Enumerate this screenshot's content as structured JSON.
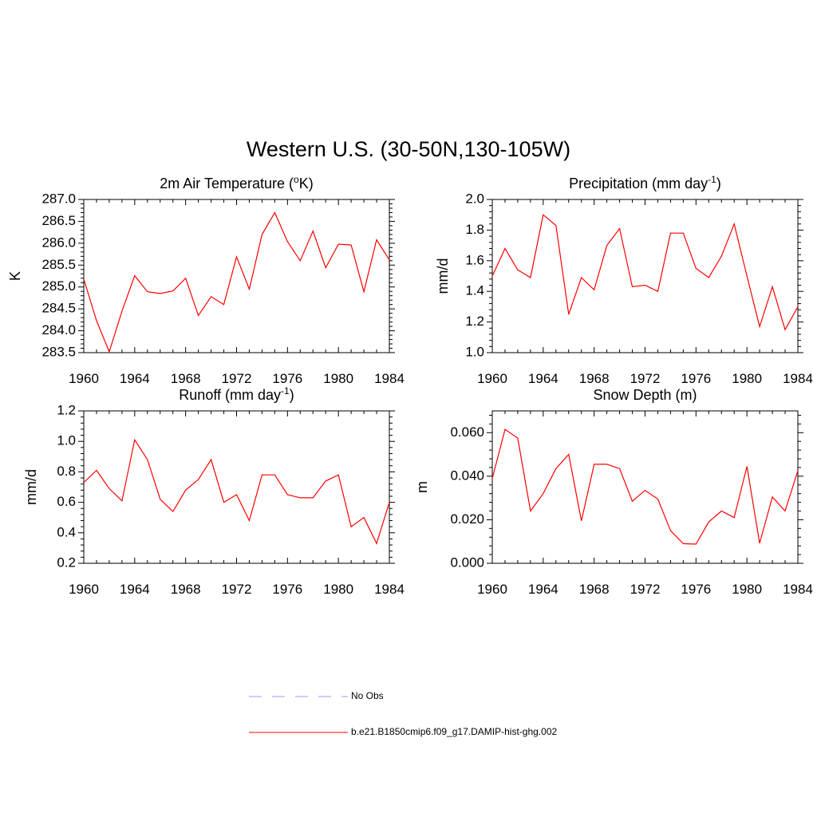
{
  "figure": {
    "title": "Western U.S. (30-50N,130-105W)"
  },
  "legend": [
    {
      "label": "No Obs",
      "color": "#9999ff",
      "style": "dashed"
    },
    {
      "label": "b.e21.B1850cmip6.f09_g17.DAMIP-hist-ghg.002",
      "color": "#ff0000",
      "style": "solid"
    }
  ],
  "chart_data": [
    {
      "type": "line",
      "title": "2m Air Temperature (oK)",
      "title_parts": [
        "2m Air Temperature (",
        "o",
        "K)"
      ],
      "title_superscript": "o",
      "ylabel": "K",
      "xlim": [
        1960,
        1984
      ],
      "ylim": [
        283.5,
        287.0
      ],
      "xticks": [
        1960,
        1964,
        1968,
        1972,
        1976,
        1980,
        1984
      ],
      "yticks": [
        "283.5",
        "284.0",
        "284.5",
        "285.0",
        "285.5",
        "286.0",
        "286.5",
        "287.0"
      ],
      "x": [
        1960,
        1961,
        1962,
        1963,
        1964,
        1965,
        1966,
        1967,
        1968,
        1969,
        1970,
        1971,
        1972,
        1973,
        1974,
        1975,
        1976,
        1977,
        1978,
        1979,
        1980,
        1981,
        1982,
        1983,
        1984
      ],
      "series": [
        {
          "name": "b.e21.B1850cmip6.f09_g17.DAMIP-hist-ghg.002",
          "color": "#ff0000",
          "values": [
            285.18,
            284.23,
            283.52,
            284.45,
            285.26,
            284.89,
            284.85,
            284.91,
            285.2,
            284.35,
            284.78,
            284.6,
            285.69,
            284.95,
            286.2,
            286.7,
            286.04,
            285.6,
            286.28,
            285.44,
            285.98,
            285.96,
            284.89,
            286.08,
            285.62
          ]
        }
      ]
    },
    {
      "type": "line",
      "title": "Precipitation (mm day-1)",
      "title_parts": [
        "Precipitation (mm day",
        "-1",
        ")"
      ],
      "title_superscript": "-1",
      "ylabel": "mm/d",
      "xlim": [
        1960,
        1984
      ],
      "ylim": [
        1.0,
        2.0
      ],
      "xticks": [
        1960,
        1964,
        1968,
        1972,
        1976,
        1980,
        1984
      ],
      "yticks": [
        "1.0",
        "1.2",
        "1.4",
        "1.6",
        "1.8",
        "2.0"
      ],
      "x": [
        1960,
        1961,
        1962,
        1963,
        1964,
        1965,
        1966,
        1967,
        1968,
        1969,
        1970,
        1971,
        1972,
        1973,
        1974,
        1975,
        1976,
        1977,
        1978,
        1979,
        1980,
        1981,
        1982,
        1983,
        1984
      ],
      "series": [
        {
          "name": "b.e21.B1850cmip6.f09_g17.DAMIP-hist-ghg.002",
          "color": "#ff0000",
          "values": [
            1.5,
            1.68,
            1.54,
            1.49,
            1.9,
            1.83,
            1.25,
            1.49,
            1.41,
            1.7,
            1.81,
            1.43,
            1.44,
            1.4,
            1.78,
            1.78,
            1.55,
            1.49,
            1.63,
            1.84,
            1.5,
            1.17,
            1.43,
            1.15,
            1.3
          ]
        }
      ]
    },
    {
      "type": "line",
      "title": "Runoff (mm day-1)",
      "title_parts": [
        "Runoff (mm day",
        "-1",
        ")"
      ],
      "title_superscript": "-1",
      "ylabel": "mm/d",
      "xlim": [
        1960,
        1984
      ],
      "ylim": [
        0.2,
        1.2
      ],
      "xticks": [
        1960,
        1964,
        1968,
        1972,
        1976,
        1980,
        1984
      ],
      "yticks": [
        "0.2",
        "0.4",
        "0.6",
        "0.8",
        "1.0",
        "1.2"
      ],
      "x": [
        1960,
        1961,
        1962,
        1963,
        1964,
        1965,
        1966,
        1967,
        1968,
        1969,
        1970,
        1971,
        1972,
        1973,
        1974,
        1975,
        1976,
        1977,
        1978,
        1979,
        1980,
        1981,
        1982,
        1983,
        1984
      ],
      "series": [
        {
          "name": "b.e21.B1850cmip6.f09_g17.DAMIP-hist-ghg.002",
          "color": "#ff0000",
          "values": [
            0.73,
            0.81,
            0.69,
            0.61,
            1.01,
            0.88,
            0.62,
            0.54,
            0.68,
            0.75,
            0.88,
            0.6,
            0.65,
            0.48,
            0.78,
            0.78,
            0.65,
            0.63,
            0.63,
            0.74,
            0.78,
            0.44,
            0.5,
            0.33,
            0.6
          ]
        }
      ]
    },
    {
      "type": "line",
      "title": "Snow Depth (m)",
      "title_parts": [
        "Snow Depth (m)",
        "",
        ""
      ],
      "title_superscript": "",
      "ylabel": "m",
      "xlim": [
        1960,
        1984
      ],
      "ylim": [
        0.0,
        0.07
      ],
      "xticks": [
        1960,
        1964,
        1968,
        1972,
        1976,
        1980,
        1984
      ],
      "yticks": [
        "0.000",
        "0.020",
        "0.040",
        "0.060"
      ],
      "x": [
        1960,
        1961,
        1962,
        1963,
        1964,
        1965,
        1966,
        1967,
        1968,
        1969,
        1970,
        1971,
        1972,
        1973,
        1974,
        1975,
        1976,
        1977,
        1978,
        1979,
        1980,
        1981,
        1982,
        1983,
        1984
      ],
      "series": [
        {
          "name": "b.e21.B1850cmip6.f09_g17.DAMIP-hist-ghg.002",
          "color": "#ff0000",
          "values": [
            0.039,
            0.0615,
            0.0575,
            0.024,
            0.032,
            0.0435,
            0.05,
            0.0195,
            0.0455,
            0.0455,
            0.0435,
            0.0285,
            0.0335,
            0.0295,
            0.015,
            0.009,
            0.0088,
            0.019,
            0.024,
            0.021,
            0.0445,
            0.0092,
            0.0305,
            0.024,
            0.0425
          ]
        }
      ]
    }
  ]
}
